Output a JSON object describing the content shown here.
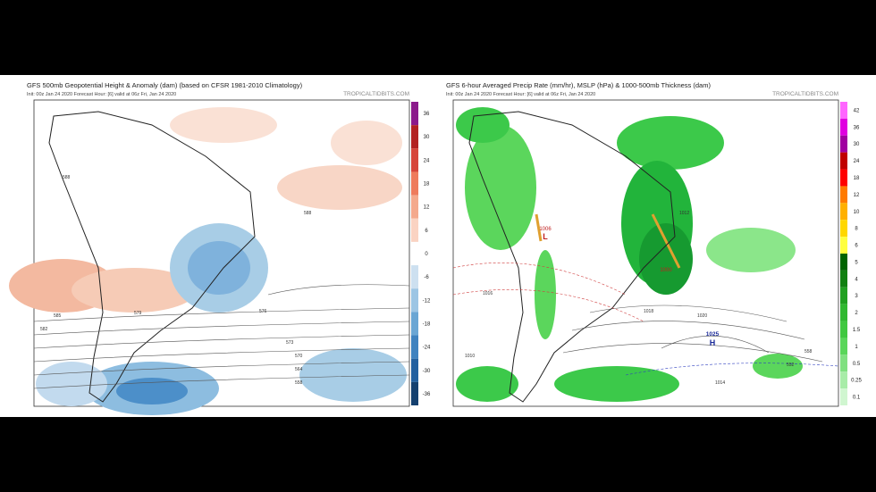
{
  "left_panel": {
    "title": "GFS 500mb Geopotential Height & Anomaly (dam) (based on CFSR 1981-2010 Climatology)",
    "init": "Init: 00z Jan 24 2020   Forecast Hour: [6]   valid at 06z Fri, Jan 24 2020",
    "brand": "TROPICALTIDBITS.COM",
    "colorbar_labels": [
      "36",
      "30",
      "24",
      "18",
      "12",
      "6",
      "0",
      "-6",
      "-12",
      "-18",
      "-24",
      "-30",
      "-36"
    ],
    "contour_labels": [
      "588",
      "588",
      "585",
      "582",
      "579",
      "576",
      "573",
      "570",
      "564",
      "558"
    ]
  },
  "right_panel": {
    "title": "GFS 6-hour Averaged Precip Rate (mm/hr), MSLP (hPa) & 1000-500mb Thickness (dam)",
    "init": "Init: 00z Jan 24 2020   Forecast Hour: [6]   valid at 06z Fri, Jan 24 2020",
    "brand": "TROPICALTIDBITS.COM",
    "colorbar_labels": [
      "42",
      "36",
      "30",
      "24",
      "18",
      "12",
      "10",
      "8",
      "6",
      "5",
      "4",
      "3",
      "2",
      "1.5",
      "1",
      "0.5",
      "0.25",
      "0.1"
    ],
    "high_label": "H",
    "high_value": "1025",
    "low_label": "L",
    "low_value": "1006",
    "low2_value": "1000",
    "contour_labels": [
      "1016",
      "1012",
      "1020",
      "1018",
      "1014",
      "1010",
      "558",
      "552"
    ]
  }
}
